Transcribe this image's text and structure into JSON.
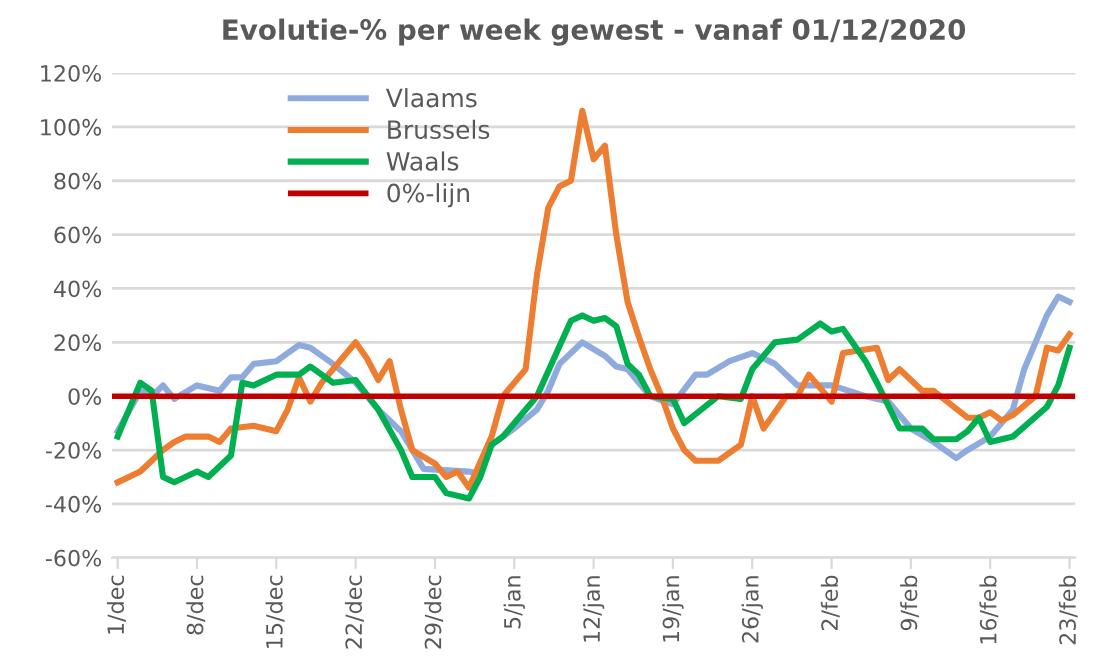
{
  "chart_data": {
    "type": "line",
    "title": "Evolutie-% per week gewest - vanaf 01/12/2020",
    "xlim": [
      "2020-11-30T12:00",
      "2021-02-23T12:00"
    ],
    "xticks": [
      {
        "value": "2020-12-01",
        "label": "1/dec"
      },
      {
        "value": "2020-12-08",
        "label": "8/dec"
      },
      {
        "value": "2020-12-15",
        "label": "15/dec"
      },
      {
        "value": "2020-12-22",
        "label": "22/dec"
      },
      {
        "value": "2020-12-29",
        "label": "29/dec"
      },
      {
        "value": "2021-01-05",
        "label": "5/jan"
      },
      {
        "value": "2021-01-12",
        "label": "12/jan"
      },
      {
        "value": "2021-01-19",
        "label": "19/jan"
      },
      {
        "value": "2021-01-26",
        "label": "26/jan"
      },
      {
        "value": "2021-02-02",
        "label": "2/feb"
      },
      {
        "value": "2021-02-09",
        "label": "9/feb"
      },
      {
        "value": "2021-02-16",
        "label": "16/feb"
      },
      {
        "value": "2021-02-23",
        "label": "23/feb"
      }
    ],
    "ylim": [
      -60,
      120
    ],
    "yticks": [
      {
        "value": -60,
        "label": "-60%"
      },
      {
        "value": -40,
        "label": "-40%"
      },
      {
        "value": -20,
        "label": "-20%"
      },
      {
        "value": 0,
        "label": "0%"
      },
      {
        "value": 20,
        "label": "20%"
      },
      {
        "value": 40,
        "label": "40%"
      },
      {
        "value": 60,
        "label": "60%"
      },
      {
        "value": 80,
        "label": "80%"
      },
      {
        "value": 100,
        "label": "100%"
      },
      {
        "value": 120,
        "label": "120%"
      }
    ],
    "grid": "y",
    "legend": "top left",
    "marker": "none",
    "line_style": "solid",
    "series": [
      {
        "name": "Vlaams",
        "color": "#8faadc",
        "x": [
          "2020-12-01",
          "2020-12-03",
          "2020-12-04",
          "2020-12-05",
          "2020-12-06",
          "2020-12-08",
          "2020-12-10",
          "2020-12-11",
          "2020-12-12",
          "2020-12-13",
          "2020-12-15",
          "2020-12-17",
          "2020-12-18",
          "2020-12-20",
          "2020-12-22",
          "2020-12-24",
          "2020-12-26",
          "2020-12-28",
          "2021-01-01",
          "2021-01-02",
          "2021-01-03",
          "2021-01-05",
          "2021-01-07",
          "2021-01-08",
          "2021-01-09",
          "2021-01-11",
          "2021-01-13",
          "2021-01-14",
          "2021-01-15",
          "2021-01-17",
          "2021-01-19",
          "2021-01-21",
          "2021-01-22",
          "2021-01-24",
          "2021-01-26",
          "2021-01-28",
          "2021-01-30",
          "2021-02-02",
          "2021-02-05",
          "2021-02-07",
          "2021-02-09",
          "2021-02-11",
          "2021-02-13",
          "2021-02-14",
          "2021-02-16",
          "2021-02-18",
          "2021-02-19",
          "2021-02-21",
          "2021-02-22",
          "2021-02-23"
        ],
        "values": [
          -13,
          2,
          0,
          4,
          -1,
          4,
          2,
          7,
          7,
          12,
          13,
          19,
          18,
          12,
          5,
          -5,
          -13,
          -27,
          -28,
          -29,
          -18,
          -12,
          -5,
          2,
          12,
          20,
          15,
          11,
          10,
          0,
          -3,
          8,
          8,
          13,
          16,
          12,
          4,
          4,
          0,
          -2,
          -12,
          -17,
          -23,
          -20,
          -15,
          -5,
          10,
          30,
          37,
          35
        ]
      },
      {
        "name": "Brussels",
        "color": "#ed7d31",
        "x": [
          "2020-12-01",
          "2020-12-03",
          "2020-12-05",
          "2020-12-06",
          "2020-12-07",
          "2020-12-09",
          "2020-12-10",
          "2020-12-11",
          "2020-12-13",
          "2020-12-15",
          "2020-12-16",
          "2020-12-17",
          "2020-12-18",
          "2020-12-19",
          "2020-12-22",
          "2020-12-23",
          "2020-12-24",
          "2020-12-25",
          "2020-12-26",
          "2020-12-27",
          "2020-12-29",
          "2020-12-30",
          "2020-12-31",
          "2021-01-01",
          "2021-01-03",
          "2021-01-04",
          "2021-01-06",
          "2021-01-07",
          "2021-01-08",
          "2021-01-09",
          "2021-01-10",
          "2021-01-11",
          "2021-01-12",
          "2021-01-13",
          "2021-01-14",
          "2021-01-15",
          "2021-01-16",
          "2021-01-17",
          "2021-01-18",
          "2021-01-19",
          "2021-01-20",
          "2021-01-21",
          "2021-01-23",
          "2021-01-25",
          "2021-01-26",
          "2021-01-27",
          "2021-01-29",
          "2021-01-30",
          "2021-01-31",
          "2021-02-02",
          "2021-02-03",
          "2021-02-06",
          "2021-02-07",
          "2021-02-08",
          "2021-02-10",
          "2021-02-11",
          "2021-02-14",
          "2021-02-15",
          "2021-02-16",
          "2021-02-17",
          "2021-02-18",
          "2021-02-20",
          "2021-02-21",
          "2021-02-22",
          "2021-02-23"
        ],
        "values": [
          -32,
          -28,
          -20,
          -17,
          -15,
          -15,
          -17,
          -12,
          -11,
          -13,
          -5,
          7,
          -2,
          5,
          20,
          14,
          6,
          13,
          -5,
          -20,
          -25,
          -30,
          -28,
          -34,
          -15,
          0,
          10,
          45,
          70,
          78,
          80,
          106,
          88,
          93,
          60,
          35,
          22,
          10,
          0,
          -12,
          -20,
          -24,
          -24,
          -18,
          0,
          -12,
          0,
          0,
          8,
          -2,
          16,
          18,
          6,
          10,
          2,
          2,
          -8,
          -8,
          -6,
          -9,
          -7,
          0,
          18,
          17,
          23
        ]
      },
      {
        "name": "Waals",
        "color": "#00b050",
        "x": [
          "2020-12-01",
          "2020-12-02",
          "2020-12-03",
          "2020-12-04",
          "2020-12-05",
          "2020-12-06",
          "2020-12-08",
          "2020-12-09",
          "2020-12-11",
          "2020-12-12",
          "2020-12-13",
          "2020-12-15",
          "2020-12-17",
          "2020-12-18",
          "2020-12-20",
          "2020-12-22",
          "2020-12-24",
          "2020-12-26",
          "2020-12-27",
          "2020-12-29",
          "2020-12-30",
          "2021-01-01",
          "2021-01-02",
          "2021-01-03",
          "2021-01-04",
          "2021-01-07",
          "2021-01-10",
          "2021-01-11",
          "2021-01-12",
          "2021-01-13",
          "2021-01-14",
          "2021-01-15",
          "2021-01-16",
          "2021-01-17",
          "2021-01-19",
          "2021-01-20",
          "2021-01-23",
          "2021-01-25",
          "2021-01-26",
          "2021-01-28",
          "2021-01-30",
          "2021-02-01",
          "2021-02-02",
          "2021-02-03",
          "2021-02-05",
          "2021-02-06",
          "2021-02-08",
          "2021-02-10",
          "2021-02-11",
          "2021-02-13",
          "2021-02-14",
          "2021-02-15",
          "2021-02-16",
          "2021-02-18",
          "2021-02-21",
          "2021-02-22",
          "2021-02-23"
        ],
        "values": [
          -15,
          -5,
          5,
          2,
          -30,
          -32,
          -28,
          -30,
          -22,
          5,
          4,
          8,
          8,
          11,
          5,
          6,
          -5,
          -20,
          -30,
          -30,
          -36,
          -38,
          -30,
          -18,
          -15,
          0,
          28,
          30,
          28,
          29,
          26,
          12,
          8,
          0,
          -1,
          -10,
          0,
          -1,
          10,
          20,
          21,
          27,
          24,
          25,
          13,
          5,
          -12,
          -12,
          -16,
          -16,
          -13,
          -8,
          -17,
          -15,
          -4,
          4,
          18
        ]
      }
    ],
    "ref_lines": [
      {
        "axis": "y",
        "value": 0,
        "label": "0%-lijn",
        "color": "#c00000",
        "line_style": "solid"
      }
    ]
  }
}
